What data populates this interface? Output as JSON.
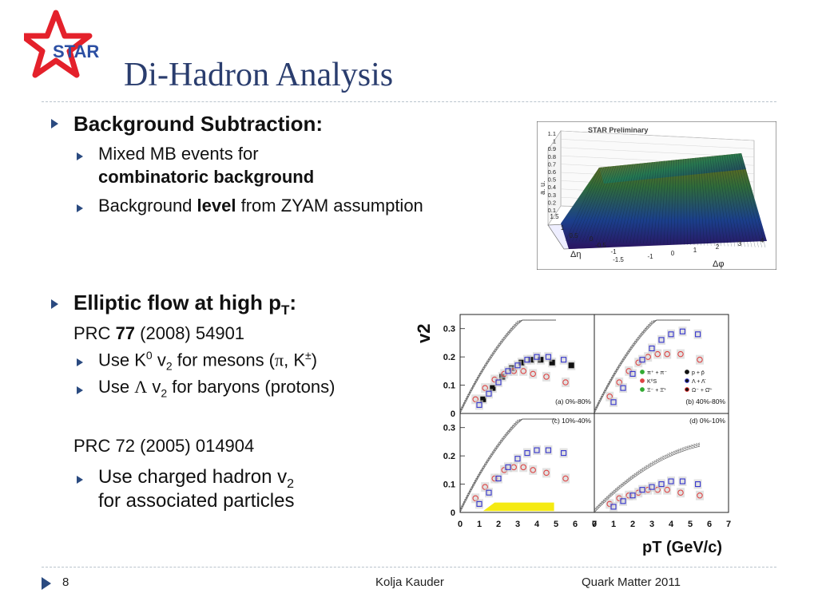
{
  "slide": {
    "logo_text": "STAR",
    "title": "Di-Hadron Analysis",
    "section1": {
      "heading": "Background Subtraction:",
      "item1_line1": "Mixed MB events for",
      "item1_line2": "combinatoric  background",
      "item2_pre": "Background ",
      "item2_bold": "level",
      "item2_post": " from ZYAM assumption"
    },
    "section2": {
      "heading_pre": "Elliptic flow at high p",
      "heading_sub": "T",
      "heading_post": ":",
      "ref1_pre": "PRC ",
      "ref1_bold": "77",
      "ref1_post": " (2008) 54901",
      "item1_pre": "Use K",
      "item1_sup": "0",
      "item1_mid": " v",
      "item1_sub": "2",
      "item1_post1": " for mesons (",
      "item1_pi": "π",
      "item1_post2": ", K",
      "item1_pm": "±",
      "item1_post3": ")",
      "item2_pre": "Use ",
      "item2_lambda": "Λ",
      "item2_mid": " v",
      "item2_sub": "2",
      "item2_post": " for baryons (protons)",
      "ref2": "PRC 72 (2005) 014904",
      "item3_line1_pre": "Use charged hadron v",
      "item3_line1_sub": "2",
      "item3_line2": "for associated particles"
    },
    "footer": {
      "page": "8",
      "author": "Kolja Kauder",
      "conference": "Quark Matter 2011"
    }
  },
  "chart_data": [
    {
      "type": "surface",
      "title": "STAR Preliminary",
      "zlabel": "a. u.",
      "xlabel": "Δη",
      "ylabel": "Δφ",
      "z_ticks": [
        "1.1",
        "1",
        "0.9",
        "0.8",
        "0.7",
        "0.6",
        "0.5",
        "0.4",
        "0.3",
        "0.2",
        "0.1"
      ],
      "eta_ticks": [
        "1.5",
        "1",
        "0.5",
        "0",
        "-0.5",
        "-1",
        "-1.5"
      ],
      "phi_ticks": [
        "-1",
        "0",
        "1",
        "2",
        "3",
        "4"
      ]
    },
    {
      "type": "scatter",
      "ylabel": "v2",
      "xlabel": "pT (GeV/c)",
      "xlim": [
        0,
        7
      ],
      "ylim": [
        0,
        0.35
      ],
      "x_ticks": [
        "0",
        "1",
        "2",
        "3",
        "4",
        "5",
        "6",
        "7"
      ],
      "y_ticks": [
        "0",
        "0.1",
        "0.2",
        "0.3"
      ],
      "legend": [
        "π⁺ + π⁻",
        "p + p̄",
        "K⁰S",
        "Λ + Λ̄",
        "Ξ⁻ + Ξ̄⁺",
        "Ω⁻ + Ω̄⁺"
      ],
      "panels": [
        {
          "label": "(a) 0%-80%",
          "series": [
            {
              "name": "p + p̄",
              "x": [
                1.2,
                1.7,
                2.2,
                2.7,
                3.2,
                3.7,
                4.2,
                4.8,
                5.8
              ],
              "y": [
                0.05,
                0.09,
                0.13,
                0.16,
                0.18,
                0.19,
                0.19,
                0.18,
                0.17
              ]
            },
            {
              "name": "K⁰S",
              "x": [
                0.8,
                1.3,
                1.8,
                2.3,
                2.8,
                3.3,
                3.8,
                4.5,
                5.5
              ],
              "y": [
                0.05,
                0.09,
                0.12,
                0.14,
                0.15,
                0.15,
                0.14,
                0.13,
                0.11
              ]
            },
            {
              "name": "Λ + Λ̄",
              "x": [
                1,
                1.5,
                2,
                2.5,
                3,
                3.5,
                4,
                4.6,
                5.4
              ],
              "y": [
                0.03,
                0.07,
                0.11,
                0.15,
                0.17,
                0.19,
                0.2,
                0.2,
                0.19
              ]
            }
          ]
        },
        {
          "label": "(b) 40%-80%",
          "series": [
            {
              "name": "K⁰S",
              "x": [
                0.8,
                1.3,
                1.8,
                2.3,
                2.8,
                3.3,
                3.8,
                4.5,
                5.5
              ],
              "y": [
                0.06,
                0.11,
                0.15,
                0.18,
                0.2,
                0.21,
                0.21,
                0.21,
                0.19
              ]
            },
            {
              "name": "Λ + Λ̄",
              "x": [
                1,
                1.5,
                2,
                2.5,
                3,
                3.5,
                4,
                4.6,
                5.4
              ],
              "y": [
                0.04,
                0.09,
                0.14,
                0.19,
                0.23,
                0.26,
                0.28,
                0.29,
                0.28
              ]
            }
          ]
        },
        {
          "label": "(c) 10%-40%",
          "series": [
            {
              "name": "K⁰S",
              "x": [
                0.8,
                1.3,
                1.8,
                2.3,
                2.8,
                3.3,
                3.8,
                4.5,
                5.5
              ],
              "y": [
                0.05,
                0.09,
                0.12,
                0.15,
                0.16,
                0.16,
                0.15,
                0.14,
                0.12
              ]
            },
            {
              "name": "Λ + Λ̄",
              "x": [
                1,
                1.5,
                2,
                2.5,
                3,
                3.5,
                4,
                4.6,
                5.4
              ],
              "y": [
                0.03,
                0.07,
                0.12,
                0.16,
                0.19,
                0.21,
                0.22,
                0.22,
                0.21
              ]
            }
          ]
        },
        {
          "label": "(d) 0%-10%",
          "series": [
            {
              "name": "K⁰S",
              "x": [
                0.8,
                1.3,
                1.8,
                2.3,
                2.8,
                3.3,
                3.8,
                4.5,
                5.5
              ],
              "y": [
                0.03,
                0.05,
                0.06,
                0.07,
                0.08,
                0.08,
                0.08,
                0.07,
                0.06
              ]
            },
            {
              "name": "Λ + Λ̄",
              "x": [
                1,
                1.5,
                2,
                2.5,
                3,
                3.5,
                4,
                4.6,
                5.4
              ],
              "y": [
                0.02,
                0.04,
                0.06,
                0.08,
                0.09,
                0.1,
                0.11,
                0.11,
                0.1
              ]
            }
          ]
        }
      ]
    }
  ]
}
